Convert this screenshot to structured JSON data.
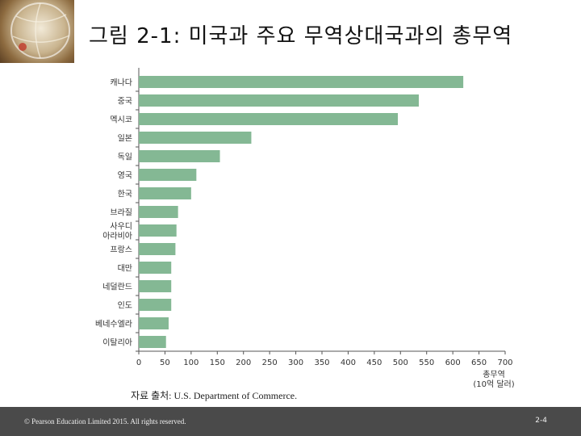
{
  "slide": {
    "title": "그림 2-1: 미국과 주요 무역상대국과의 총무역",
    "source": "자료 출처: U.S. Department of Commerce.",
    "footer_copyright": "© Pearson Education Limited 2015. All rights reserved.",
    "page_number": "2-4"
  },
  "chart_data": {
    "type": "bar",
    "orientation": "horizontal",
    "categories": [
      "캐나다",
      "중국",
      "멕시코",
      "일본",
      "독일",
      "영국",
      "한국",
      "브라질",
      "사우디\n아라비아",
      "프랑스",
      "대만",
      "네덜란드",
      "인도",
      "베네수엘라",
      "이탈리아"
    ],
    "values": [
      620,
      535,
      495,
      215,
      155,
      110,
      100,
      75,
      72,
      70,
      62,
      62,
      62,
      57,
      52
    ],
    "xlabel": "총무역\n(10억 달러)",
    "xlim": [
      0,
      700
    ],
    "xticks": [
      0,
      50,
      100,
      150,
      200,
      250,
      300,
      350,
      400,
      450,
      500,
      550,
      600,
      650,
      700
    ],
    "grid": false,
    "bar_color": "#84b894"
  }
}
